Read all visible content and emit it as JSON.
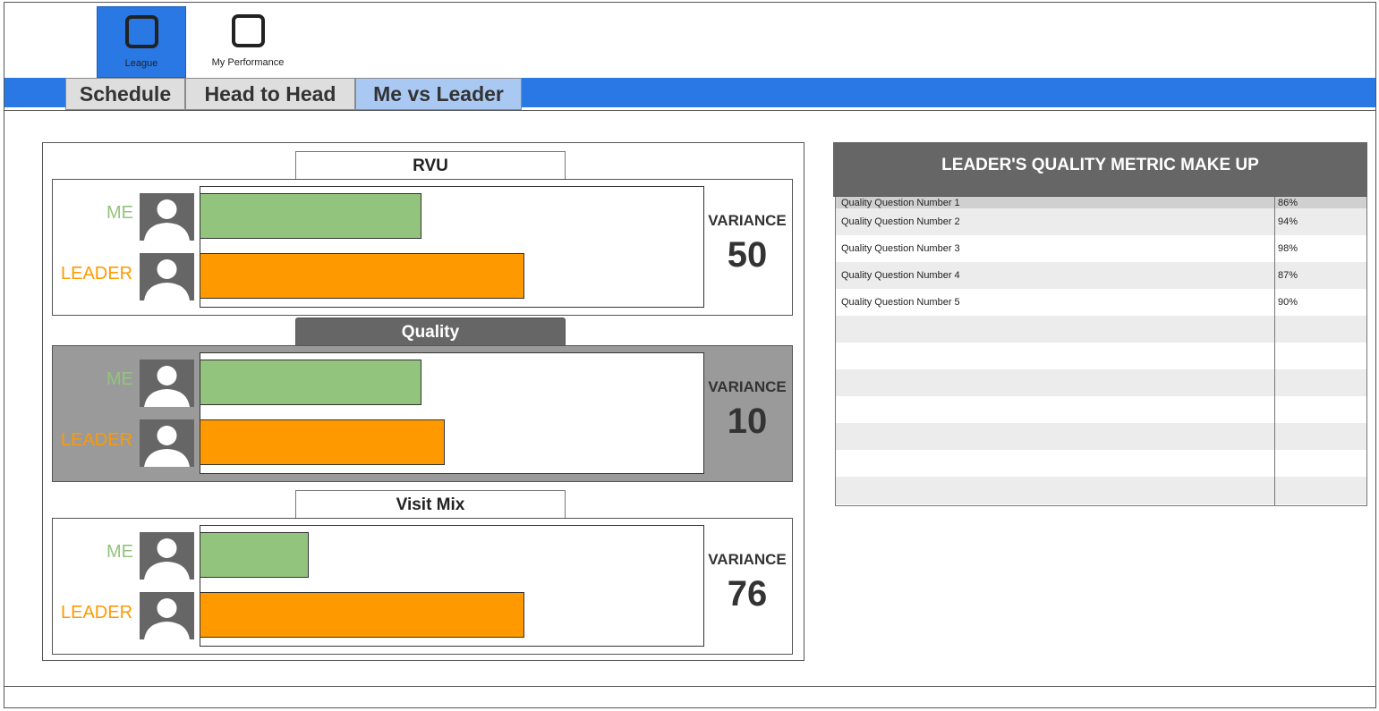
{
  "nav": {
    "items": [
      {
        "label": "League",
        "icon": "square-icon",
        "active": true
      },
      {
        "label": "My Performance",
        "icon": "square-icon",
        "active": false
      }
    ]
  },
  "tabs": [
    {
      "label": "Schedule",
      "active": false
    },
    {
      "label": "Head to Head",
      "active": false
    },
    {
      "label": "Me vs Leader",
      "active": true
    }
  ],
  "comparison": {
    "me_label": "ME",
    "leader_label": "LEADER",
    "variance_label": "VARIANCE",
    "colors": {
      "me": "#93c47d",
      "leader": "#ff9900"
    },
    "sections": [
      {
        "title": "RVU",
        "me_fraction": 0.44,
        "leader_fraction": 0.645,
        "variance": "50"
      },
      {
        "title": "Quality",
        "me_fraction": 0.44,
        "leader_fraction": 0.485,
        "variance": "10"
      },
      {
        "title": "Visit Mix",
        "me_fraction": 0.215,
        "leader_fraction": 0.645,
        "variance": "76"
      }
    ]
  },
  "quality_table": {
    "title": "LEADER'S QUALITY METRIC MAKE UP",
    "rows": [
      {
        "question": "Quality Question Number 1",
        "value": "86%"
      },
      {
        "question": "Quality Question Number 2",
        "value": "94%"
      },
      {
        "question": "Quality Question Number 3",
        "value": "98%"
      },
      {
        "question": "Quality Question Number 4",
        "value": "87%"
      },
      {
        "question": "Quality Question Number 5",
        "value": "90%"
      }
    ]
  }
}
